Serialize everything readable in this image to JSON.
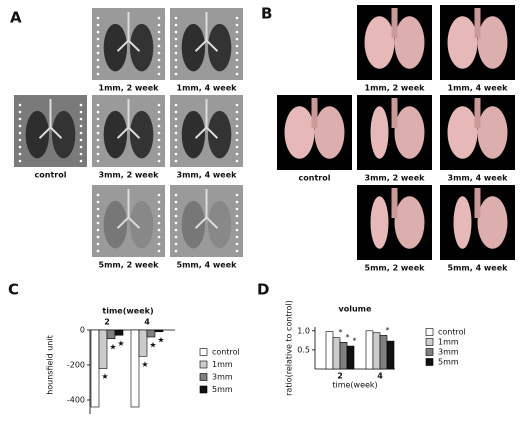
{
  "panel_a": {
    "label": "A",
    "captions": [
      "1mm, 2 week",
      "1mm, 4 week",
      "control",
      "3mm, 2 week",
      "3mm, 4 week",
      "5mm, 2 week",
      "5mm, 4 week"
    ]
  },
  "panel_b": {
    "label": "B",
    "captions": [
      "1mm, 2 week",
      "1mm, 4 week",
      "control",
      "3mm, 2 week",
      "3mm, 4 week",
      "5mm, 2 week",
      "5mm, 4 week"
    ]
  },
  "chart_data": [
    {
      "type": "bar",
      "panel_label": "C",
      "title": "time(week)",
      "y_label": "hounsfield unit",
      "categories": [
        "2",
        "4"
      ],
      "ylim": [
        -480,
        0
      ],
      "yticks": [
        0,
        -200,
        -400
      ],
      "series": [
        {
          "name": "control",
          "color": "#ffffff",
          "values": [
            -440,
            -440
          ],
          "significance": [
            null,
            null
          ]
        },
        {
          "name": "1mm",
          "color": "#cccccc",
          "values": [
            -220,
            -150
          ],
          "significance": [
            "★",
            "★"
          ]
        },
        {
          "name": "3mm",
          "color": "#808080",
          "values": [
            -50,
            -40
          ],
          "significance": [
            "★",
            "★"
          ]
        },
        {
          "name": "5mm",
          "color": "#111111",
          "values": [
            -30,
            -10
          ],
          "significance": [
            "★",
            "★"
          ]
        }
      ]
    },
    {
      "type": "bar",
      "panel_label": "D",
      "title": "volume",
      "x_label": "time(week)",
      "y_label": "ratio(relative to control)",
      "categories": [
        "2",
        "4"
      ],
      "ylim": [
        0,
        1.1
      ],
      "yticks": [
        0.5,
        {
          "value": 1,
          "label": "1.0"
        }
      ],
      "series": [
        {
          "name": "control",
          "color": "#ffffff",
          "values": [
            0.98,
            1.0
          ],
          "significance": [
            null,
            null
          ]
        },
        {
          "name": "1mm",
          "color": "#cccccc",
          "values": [
            0.82,
            0.95
          ],
          "significance": [
            "*",
            null
          ]
        },
        {
          "name": "3mm",
          "color": "#808080",
          "values": [
            0.7,
            0.88
          ],
          "significance": [
            "*",
            "*"
          ]
        },
        {
          "name": "5mm",
          "color": "#111111",
          "values": [
            0.6,
            0.73
          ],
          "significance": [
            "*",
            null
          ]
        }
      ]
    }
  ]
}
